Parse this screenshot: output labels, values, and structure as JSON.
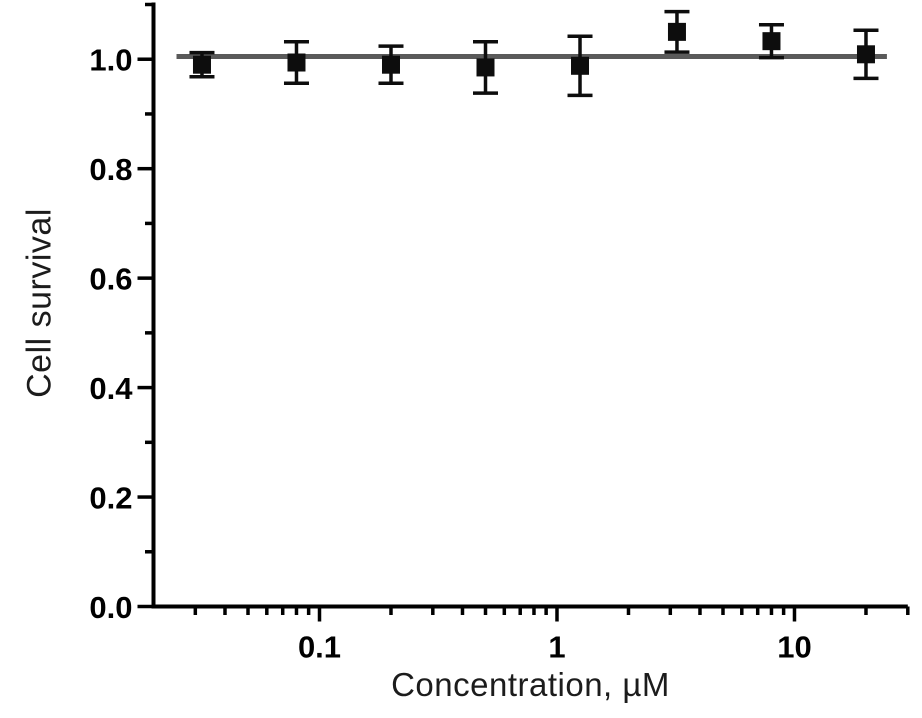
{
  "figure": {
    "background": "#ffffff",
    "colors": {
      "axis": "#000000",
      "tick_text": "#000000",
      "title_text": "#1c1c1c",
      "marker": "#0d0d0d",
      "reference_line": "#5a5a5a"
    }
  },
  "chart_data": {
    "type": "scatter",
    "title": "",
    "xlabel": "Concentration, µM",
    "ylabel": "Cell survival",
    "x_scale": "log",
    "y_scale": "linear",
    "xlim": [
      0.02,
      30
    ],
    "ylim": [
      0.0,
      1.1
    ],
    "grid": false,
    "legend": "none",
    "x_axis": {
      "major_ticks": [
        0.1,
        1,
        10
      ],
      "major_tick_labels": [
        "0.1",
        "1",
        "10"
      ],
      "minor_ticks": [
        0.03,
        0.04,
        0.05,
        0.06,
        0.07,
        0.08,
        0.09,
        0.2,
        0.3,
        0.4,
        0.5,
        0.6,
        0.7,
        0.8,
        0.9,
        2,
        3,
        4,
        5,
        6,
        7,
        8,
        9,
        20,
        30
      ]
    },
    "y_axis": {
      "major_ticks": [
        0.0,
        0.2,
        0.4,
        0.6,
        0.8,
        1.0
      ],
      "major_tick_labels": [
        "0.0",
        "0.2",
        "0.4",
        "0.6",
        "0.8",
        "1.0"
      ],
      "minor_ticks": [
        0.1,
        0.3,
        0.5,
        0.7,
        0.9,
        1.1
      ]
    },
    "series": [
      {
        "name": "cell-survival",
        "marker": "square",
        "marker_size": 18,
        "color": "#0d0d0d",
        "x": [
          0.032,
          0.08,
          0.2,
          0.5,
          1.25,
          3.2,
          8,
          20
        ],
        "y": [
          0.99,
          0.994,
          0.99,
          0.985,
          0.988,
          1.05,
          1.033,
          1.009
        ],
        "y_err": [
          0.022,
          0.038,
          0.034,
          0.047,
          0.054,
          0.037,
          0.03,
          0.044
        ]
      }
    ],
    "reference_line": {
      "y": 1.005,
      "x_start": 0.025,
      "x_end": 24.5,
      "color": "#5a5a5a",
      "width": 5
    }
  }
}
